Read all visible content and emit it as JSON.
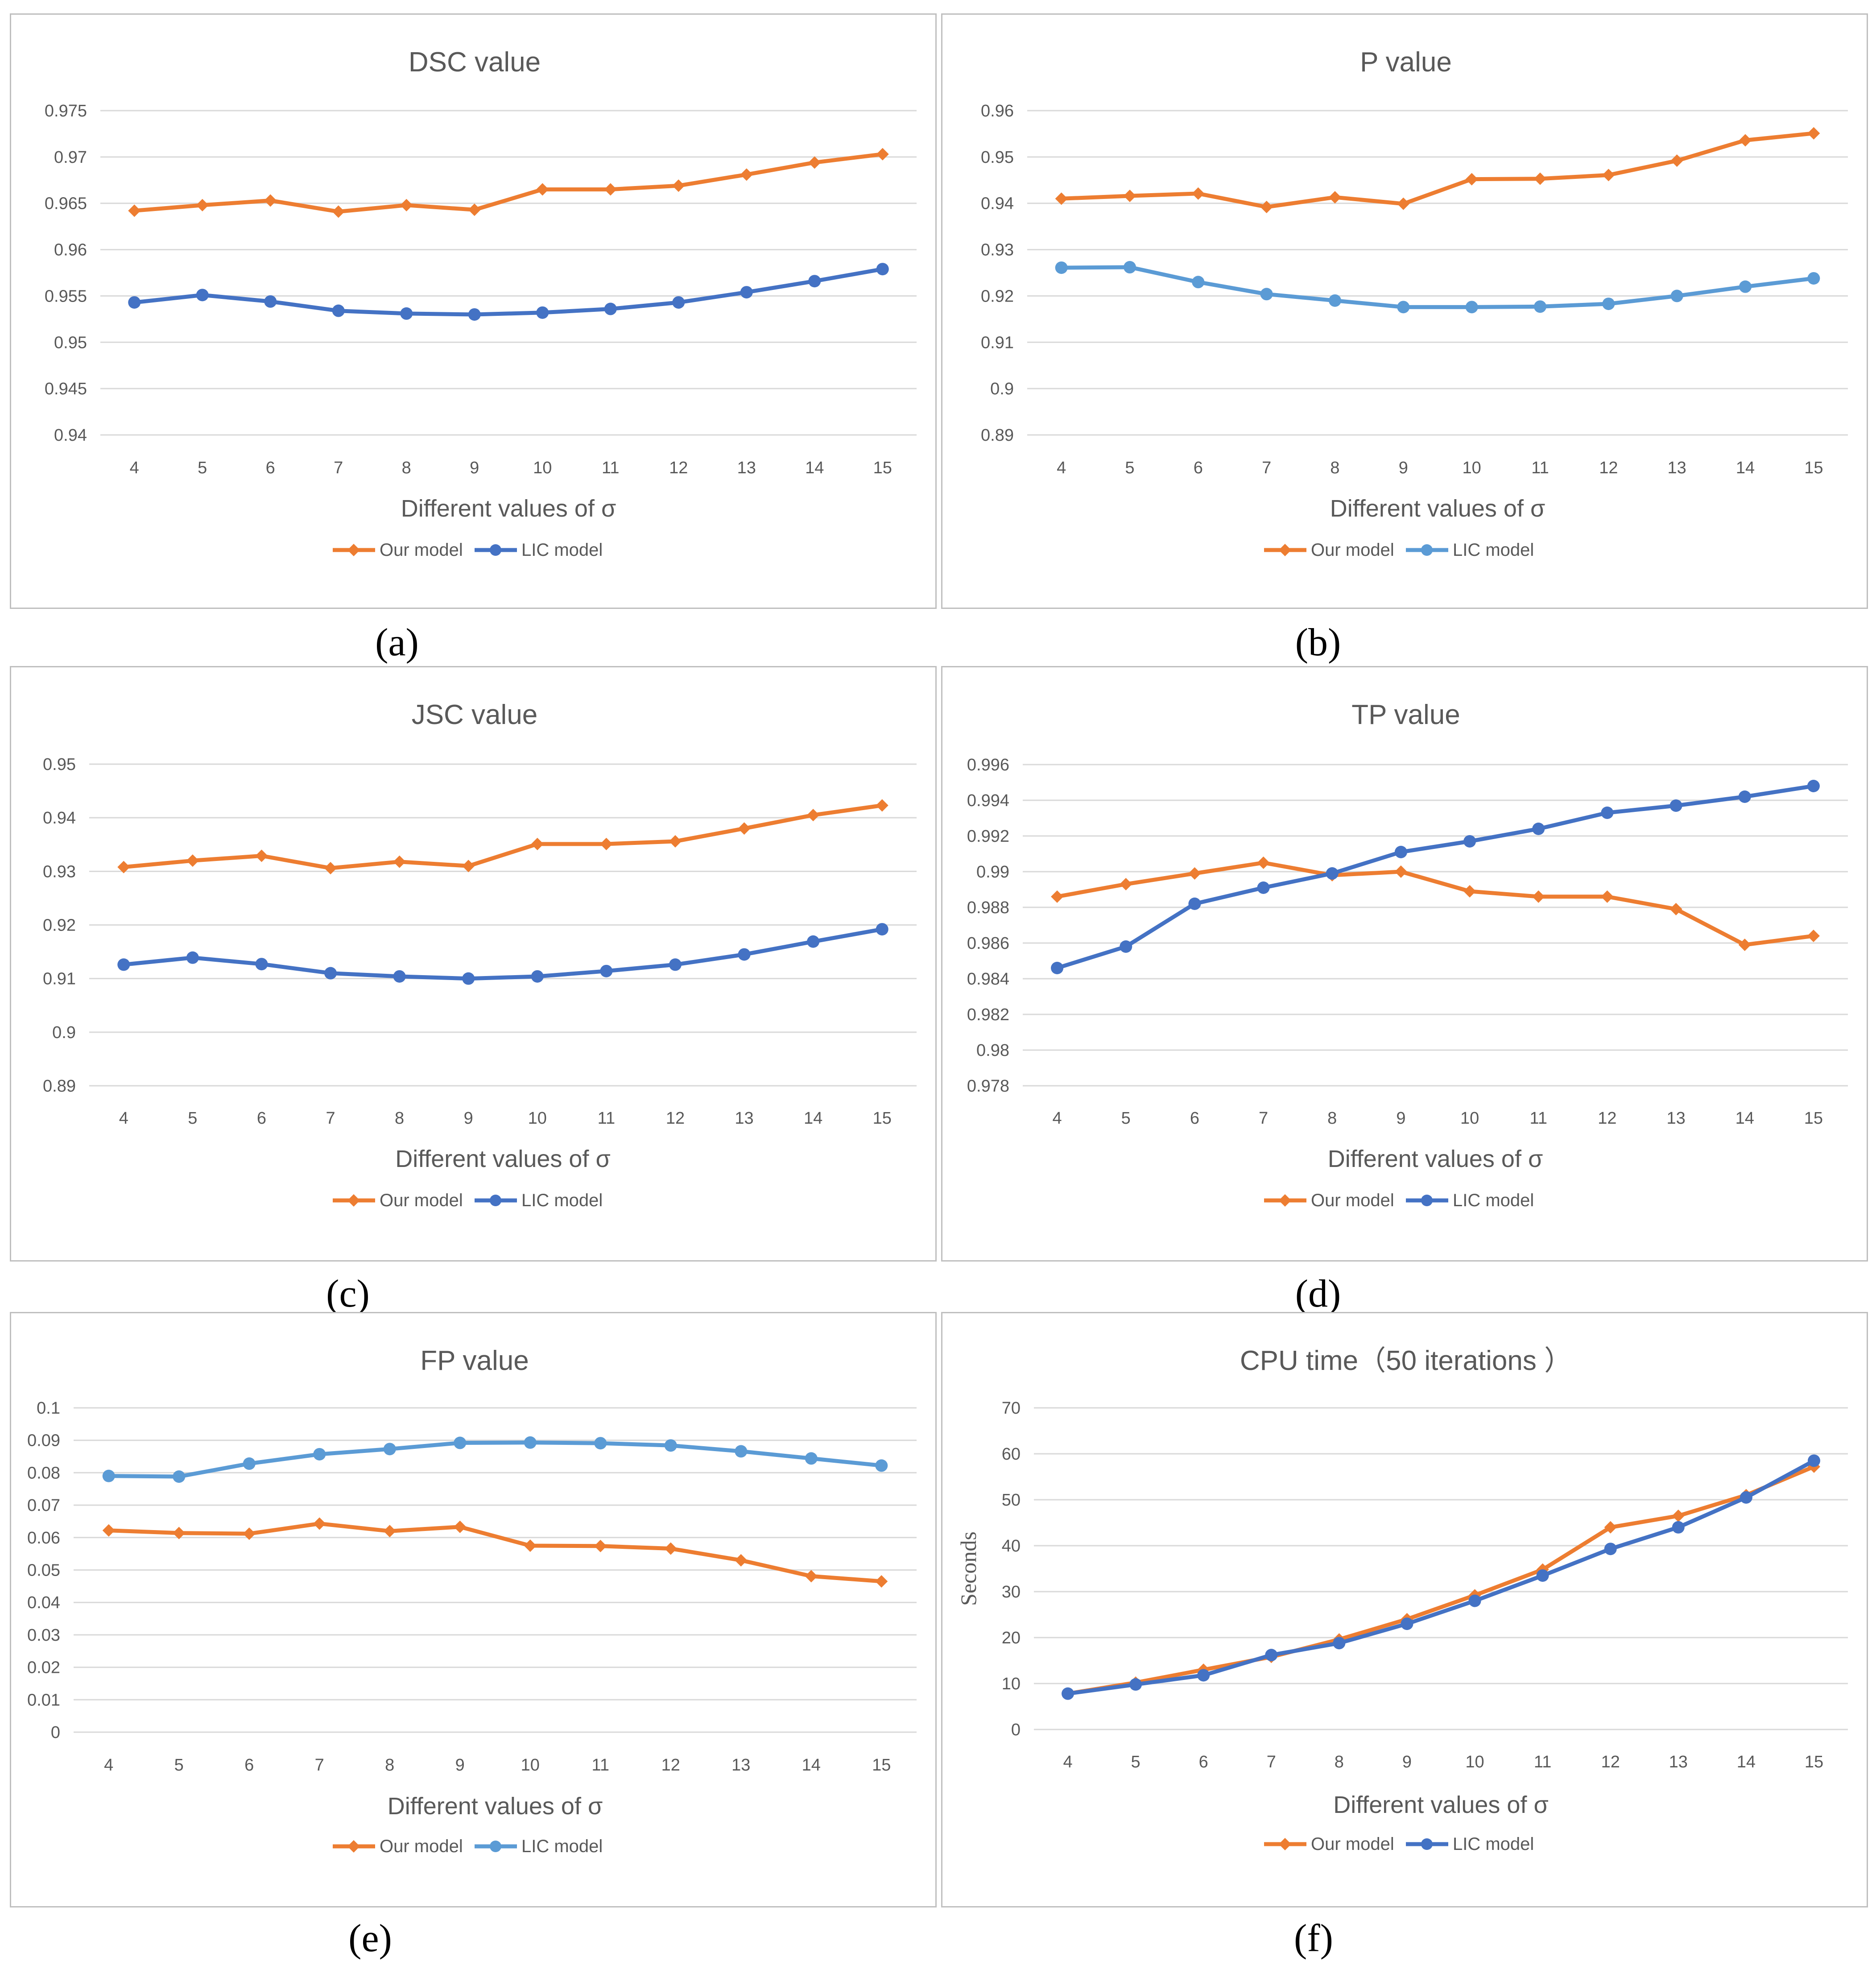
{
  "colors": {
    "orange": "#ED7D31",
    "blue": "#4472C4",
    "lightblue": "#5B9BD5",
    "grid": "#D9D9D9",
    "text": "#595959"
  },
  "captions": [
    "(a)",
    "(b)",
    "(c)",
    "(d)",
    "(e)",
    "(f)"
  ],
  "chart_data": [
    {
      "type": "line",
      "title": "DSC value",
      "xlabel": "Different values of σ",
      "ylabel": "",
      "categories": [
        "4",
        "5",
        "6",
        "7",
        "8",
        "9",
        "10",
        "11",
        "12",
        "13",
        "14",
        "15"
      ],
      "yticks": [
        "0.94",
        "0.945",
        "0.95",
        "0.955",
        "0.96",
        "0.965",
        "0.97",
        "0.975"
      ],
      "ylim": [
        0.94,
        0.975
      ],
      "series": [
        {
          "name": "Our model",
          "color": "orange",
          "marker": "diamond",
          "values": [
            0.9642,
            0.9648,
            0.9653,
            0.9641,
            0.9648,
            0.9643,
            0.9665,
            0.9665,
            0.9669,
            0.9681,
            0.9694,
            0.9703
          ]
        },
        {
          "name": "LIC model",
          "color": "blue",
          "marker": "circle",
          "values": [
            0.9543,
            0.9551,
            0.9544,
            0.9534,
            0.9531,
            0.953,
            0.9532,
            0.9536,
            0.9543,
            0.9554,
            0.9566,
            0.9579
          ]
        }
      ]
    },
    {
      "type": "line",
      "title": "P value",
      "xlabel": "Different values of σ",
      "ylabel": "",
      "categories": [
        "4",
        "5",
        "6",
        "7",
        "8",
        "9",
        "10",
        "11",
        "12",
        "13",
        "14",
        "15"
      ],
      "yticks": [
        "0.89",
        "0.9",
        "0.91",
        "0.92",
        "0.93",
        "0.94",
        "0.95",
        "0.96"
      ],
      "ylim": [
        0.89,
        0.96
      ],
      "series": [
        {
          "name": "Our model",
          "color": "orange",
          "marker": "diamond",
          "values": [
            0.941,
            0.9416,
            0.9421,
            0.9392,
            0.9413,
            0.9399,
            0.9452,
            0.9453,
            0.9461,
            0.9492,
            0.9536,
            0.9551
          ]
        },
        {
          "name": "LIC model",
          "color": "lightblue",
          "marker": "circle",
          "values": [
            0.9261,
            0.9262,
            0.923,
            0.9204,
            0.919,
            0.9176,
            0.9176,
            0.9177,
            0.9183,
            0.92,
            0.922,
            0.9238
          ]
        }
      ]
    },
    {
      "type": "line",
      "title": "JSC value",
      "xlabel": "Different values of σ",
      "ylabel": "",
      "categories": [
        "4",
        "5",
        "6",
        "7",
        "8",
        "9",
        "10",
        "11",
        "12",
        "13",
        "14",
        "15"
      ],
      "yticks": [
        "0.89",
        "0.9",
        "0.91",
        "0.92",
        "0.93",
        "0.94",
        "0.95"
      ],
      "ylim": [
        0.89,
        0.95
      ],
      "series": [
        {
          "name": "Our model",
          "color": "orange",
          "marker": "diamond",
          "values": [
            0.9308,
            0.932,
            0.9329,
            0.9306,
            0.9318,
            0.931,
            0.9351,
            0.9351,
            0.9356,
            0.938,
            0.9405,
            0.9423
          ]
        },
        {
          "name": "LIC model",
          "color": "blue",
          "marker": "circle",
          "values": [
            0.9126,
            0.9139,
            0.9127,
            0.911,
            0.9104,
            0.91,
            0.9104,
            0.9114,
            0.9126,
            0.9145,
            0.9169,
            0.9192
          ]
        }
      ]
    },
    {
      "type": "line",
      "title": "TP value",
      "xlabel": "Different values of σ",
      "ylabel": "",
      "categories": [
        "4",
        "5",
        "6",
        "7",
        "8",
        "9",
        "10",
        "11",
        "12",
        "13",
        "14",
        "15"
      ],
      "yticks": [
        "0.978",
        "0.98",
        "0.982",
        "0.984",
        "0.986",
        "0.988",
        "0.99",
        "0.992",
        "0.994",
        "0.996"
      ],
      "ylim": [
        0.978,
        0.996
      ],
      "series": [
        {
          "name": "Our model",
          "color": "orange",
          "marker": "diamond",
          "values": [
            0.9886,
            0.9893,
            0.9899,
            0.9905,
            0.9898,
            0.99,
            0.9889,
            0.9886,
            0.9886,
            0.9879,
            0.9859,
            0.9864
          ]
        },
        {
          "name": "LIC model",
          "color": "blue",
          "marker": "circle",
          "values": [
            0.9846,
            0.9858,
            0.9882,
            0.9891,
            0.9899,
            0.9911,
            0.9917,
            0.9924,
            0.9933,
            0.9937,
            0.9942,
            0.9948
          ]
        }
      ]
    },
    {
      "type": "line",
      "title": "FP value",
      "xlabel": "Different values of σ",
      "ylabel": "",
      "categories": [
        "4",
        "5",
        "6",
        "7",
        "8",
        "9",
        "10",
        "11",
        "12",
        "13",
        "14",
        "15"
      ],
      "yticks": [
        "0",
        "0.01",
        "0.02",
        "0.03",
        "0.04",
        "0.05",
        "0.06",
        "0.07",
        "0.08",
        "0.09",
        "0.1"
      ],
      "ylim": [
        0,
        0.1
      ],
      "series": [
        {
          "name": "Our model",
          "color": "orange",
          "marker": "diamond",
          "values": [
            0.0622,
            0.0614,
            0.0612,
            0.0643,
            0.062,
            0.0633,
            0.0575,
            0.0574,
            0.0566,
            0.053,
            0.0481,
            0.0465
          ]
        },
        {
          "name": "LIC model",
          "color": "lightblue",
          "marker": "circle",
          "values": [
            0.079,
            0.0788,
            0.0828,
            0.0857,
            0.0873,
            0.0892,
            0.0893,
            0.0891,
            0.0884,
            0.0866,
            0.0844,
            0.0822
          ]
        }
      ]
    },
    {
      "type": "line",
      "title": "CPU time（50 iterations ）",
      "xlabel": "Different values of σ",
      "ylabel": "Seconds",
      "categories": [
        "4",
        "5",
        "6",
        "7",
        "8",
        "9",
        "10",
        "11",
        "12",
        "13",
        "14",
        "15"
      ],
      "yticks": [
        "0",
        "10",
        "20",
        "30",
        "40",
        "50",
        "60",
        "70"
      ],
      "ylim": [
        0,
        70
      ],
      "series": [
        {
          "name": "Our model",
          "color": "orange",
          "marker": "diamond",
          "values": [
            7.8,
            10.2,
            13.0,
            15.8,
            19.6,
            24.0,
            29.2,
            34.8,
            44.0,
            46.5,
            51.0,
            57.2
          ]
        },
        {
          "name": "LIC model",
          "color": "blue",
          "marker": "circle",
          "values": [
            7.8,
            9.8,
            11.8,
            16.2,
            18.8,
            23.0,
            28.0,
            33.5,
            39.3,
            44.0,
            50.5,
            58.5
          ]
        }
      ]
    }
  ]
}
